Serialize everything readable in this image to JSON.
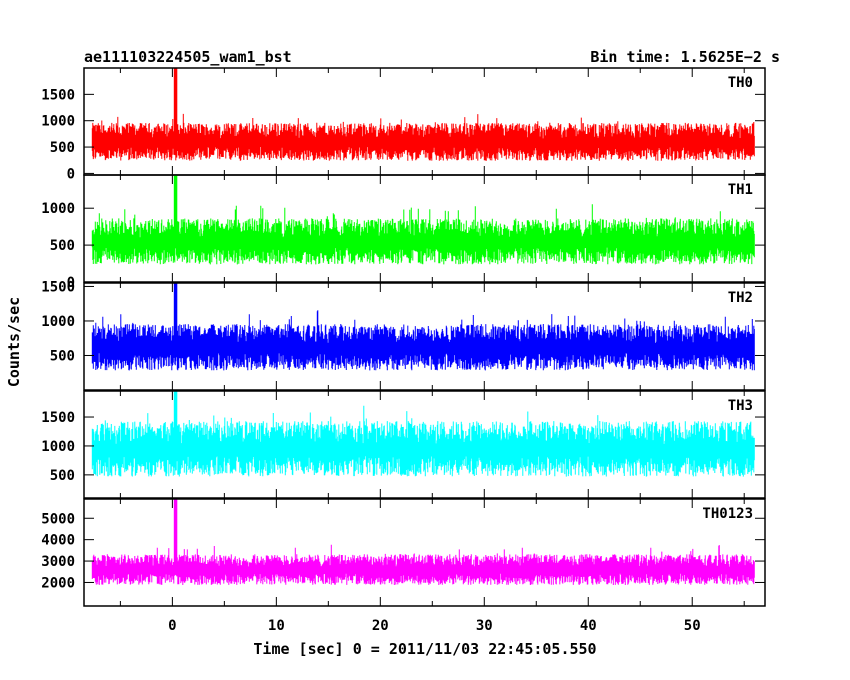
{
  "header": {
    "left_title": "ae111103224505_wam1_bst",
    "right_title": "Bin time: 1.5625E−2 s"
  },
  "axes": {
    "ylabel": "Counts/sec",
    "xlabel": "Time [sec] 0 = 2011/11/03 22:45:05.550"
  },
  "chart_data": {
    "type": "line",
    "x_range": [
      -8.5,
      57
    ],
    "x_data_range": [
      -7.7,
      56
    ],
    "x_ticks": [
      0,
      10,
      20,
      30,
      40,
      50
    ],
    "burst_time": 0.3,
    "panels": [
      {
        "name": "TH0",
        "color": "#ff0000",
        "ylim": [
          -30,
          2000
        ],
        "y_ticks": [
          0,
          500,
          1000,
          1500
        ],
        "baseline": 600,
        "noise": 300,
        "floor": 30,
        "peak": 2000
      },
      {
        "name": "TH1",
        "color": "#00ff00",
        "ylim": [
          0,
          1450
        ],
        "y_ticks": [
          0,
          500,
          1000
        ],
        "baseline": 550,
        "noise": 260,
        "floor": 30,
        "peak": 1450
      },
      {
        "name": "TH2",
        "color": "#0000ff",
        "ylim": [
          0,
          1550
        ],
        "y_ticks": [
          500,
          1000,
          1500
        ],
        "baseline": 620,
        "noise": 280,
        "floor": 30,
        "peak": 1550
      },
      {
        "name": "TH3",
        "color": "#00ffff",
        "ylim": [
          100,
          1950
        ],
        "y_ticks": [
          500,
          1000,
          1500
        ],
        "baseline": 950,
        "noise": 400,
        "floor": 200,
        "peak": 1950
      },
      {
        "name": "TH0123",
        "color": "#ff00ff",
        "ylim": [
          900,
          5900
        ],
        "y_ticks": [
          2000,
          3000,
          4000,
          5000
        ],
        "baseline": 2600,
        "noise": 600,
        "floor": 1200,
        "peak": 5900
      }
    ]
  }
}
